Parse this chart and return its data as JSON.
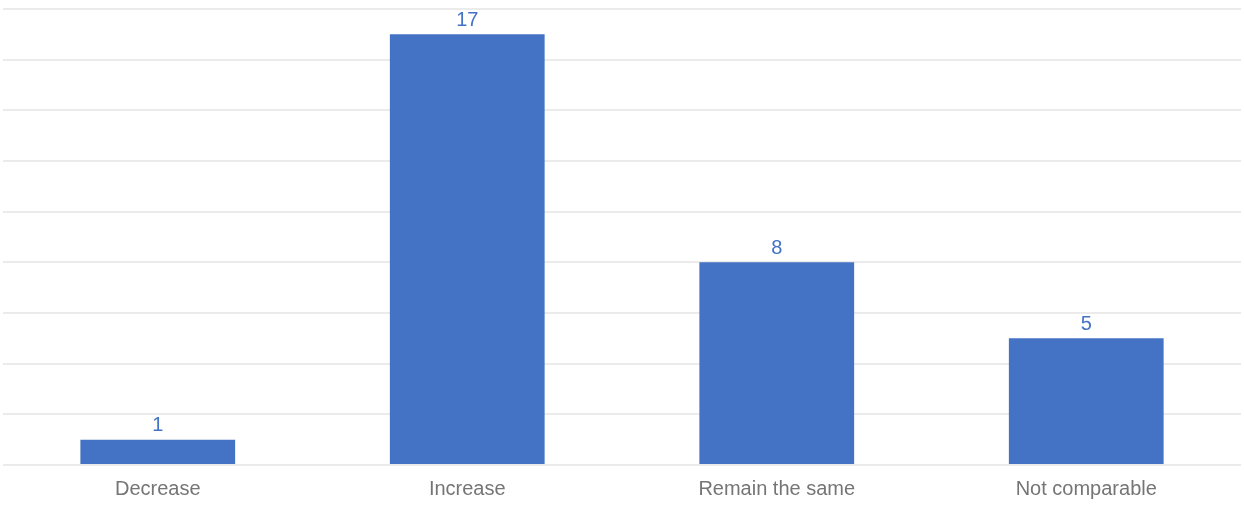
{
  "chart_data": {
    "type": "bar",
    "categories": [
      "Decrease",
      "Increase",
      "Remain the same",
      "Not comparable"
    ],
    "values": [
      1,
      17,
      8,
      5
    ],
    "color": "#4472c4",
    "ylim": [
      0,
      18
    ],
    "yticks": [
      {
        "value": 0,
        "label": null
      },
      {
        "value": 2,
        "label": null
      },
      {
        "value": 4,
        "label": null
      },
      {
        "value": 6,
        "label": null
      },
      {
        "value": 8,
        "label": null
      },
      {
        "value": 10,
        "label": null
      },
      {
        "value": 12,
        "label": null
      },
      {
        "value": 14,
        "label": null
      },
      {
        "value": 16,
        "label": null
      },
      {
        "value": 18,
        "label": null
      }
    ],
    "grid": "y",
    "data_labels": true,
    "legend": false,
    "tick_labels": "x"
  }
}
